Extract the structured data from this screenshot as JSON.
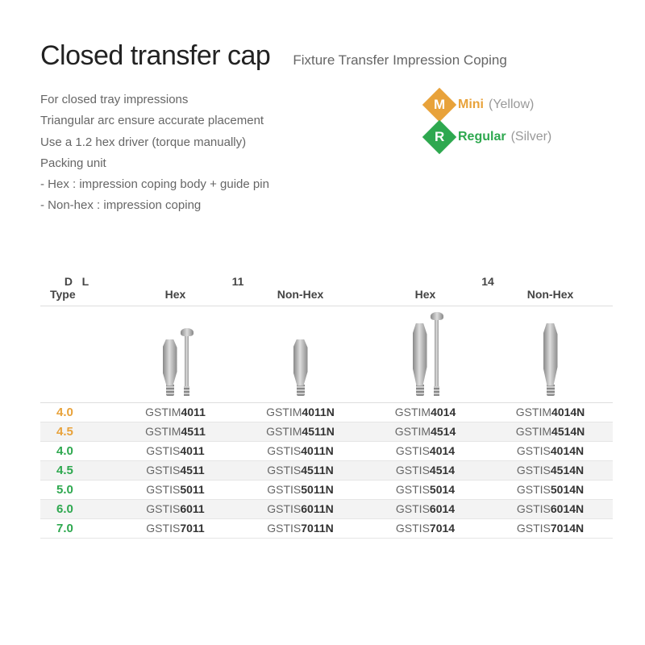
{
  "title": "Closed transfer cap",
  "subtitle": "Fixture Transfer Impression Coping",
  "description": [
    "For closed tray impressions",
    "Triangular arc ensure accurate placement",
    "Use a 1.2 hex driver (torque manually)",
    "Packing unit",
    "- Hex : impression coping body + guide pin",
    "- Non-hex : impression coping"
  ],
  "legend": {
    "mini": {
      "letter": "M",
      "label": "Mini",
      "note": "(Yellow)",
      "color": "#e8a23a"
    },
    "regular": {
      "letter": "R",
      "label": "Regular",
      "note": "(Silver)",
      "color": "#2ea84f"
    }
  },
  "headers": {
    "dl": "D   L",
    "group1": "11",
    "group2": "14",
    "type": "Type",
    "hex": "Hex",
    "nonhex": "Non-Hex"
  },
  "rows": [
    {
      "d": "4.0",
      "cls": "mini",
      "alt": false,
      "prefix": "GSTIM",
      "codes": [
        "4011",
        "4011N",
        "4014",
        "4014N"
      ]
    },
    {
      "d": "4.5",
      "cls": "mini",
      "alt": true,
      "prefix": "GSTIM",
      "codes": [
        "4511",
        "4511N",
        "4514",
        "4514N"
      ]
    },
    {
      "d": "4.0",
      "cls": "regular",
      "alt": false,
      "prefix": "GSTIS",
      "codes": [
        "4011",
        "4011N",
        "4014",
        "4014N"
      ]
    },
    {
      "d": "4.5",
      "cls": "regular",
      "alt": true,
      "prefix": "GSTIS",
      "codes": [
        "4511",
        "4511N",
        "4514",
        "4514N"
      ]
    },
    {
      "d": "5.0",
      "cls": "regular",
      "alt": false,
      "prefix": "GSTIS",
      "codes": [
        "5011",
        "5011N",
        "5014",
        "5014N"
      ]
    },
    {
      "d": "6.0",
      "cls": "regular",
      "alt": true,
      "prefix": "GSTIS",
      "codes": [
        "6011",
        "6011N",
        "6014",
        "6014N"
      ]
    },
    {
      "d": "7.0",
      "cls": "regular",
      "alt": false,
      "prefix": "GSTIS",
      "codes": [
        "7011",
        "7011N",
        "7014",
        "7014N"
      ]
    }
  ]
}
